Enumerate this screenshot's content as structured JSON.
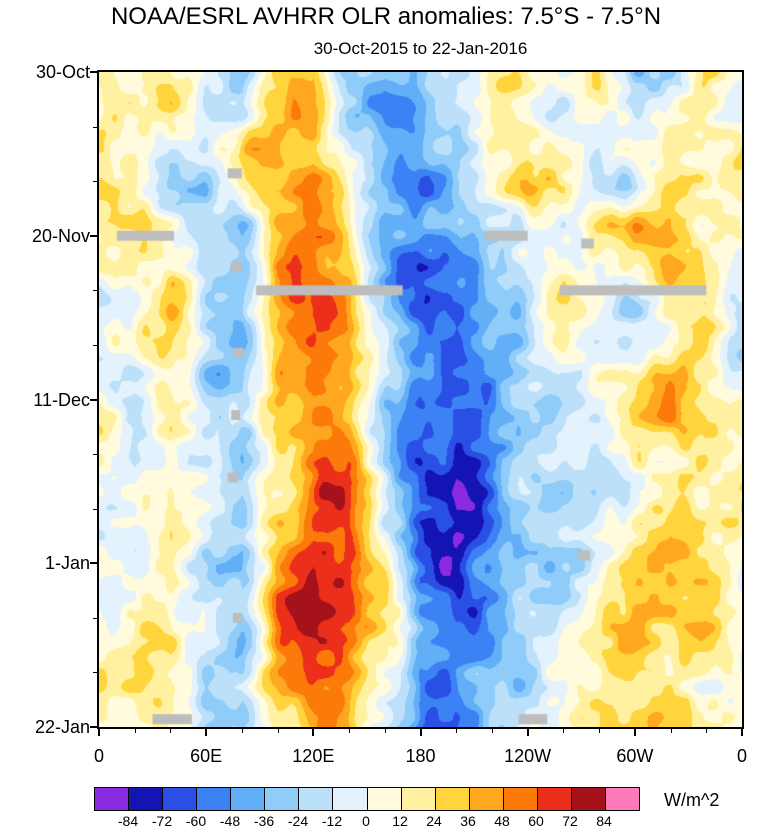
{
  "chart_data": {
    "type": "heatmap",
    "title": "NOAA/ESRL AVHRR OLR anomalies: 7.5°S - 7.5°N",
    "subtitle": "30-Oct-2015 to 22-Jan-2016",
    "units_label": "W/m^2",
    "xlabel": "",
    "ylabel": "",
    "x_axis": {
      "range_deg": [
        0,
        360
      ],
      "minor_step_deg": 20,
      "major_ticks": [
        {
          "lon": 0,
          "label": "0"
        },
        {
          "lon": 60,
          "label": "60E"
        },
        {
          "lon": 120,
          "label": "120E"
        },
        {
          "lon": 180,
          "label": "180"
        },
        {
          "lon": 240,
          "label": "120W"
        },
        {
          "lon": 300,
          "label": "60W"
        },
        {
          "lon": 360,
          "label": "0"
        }
      ]
    },
    "y_axis": {
      "range_days": [
        0,
        84
      ],
      "minor_step_days": 7,
      "orientation": "time increases downward",
      "major_ticks": [
        {
          "day": 0,
          "label": "30-Oct"
        },
        {
          "day": 21,
          "label": "20-Nov"
        },
        {
          "day": 42,
          "label": "11-Dec"
        },
        {
          "day": 63,
          "label": "1-Jan"
        },
        {
          "day": 84,
          "label": "22-Jan"
        }
      ]
    },
    "levels": [
      -84,
      -72,
      -60,
      -48,
      -36,
      -24,
      -12,
      0,
      12,
      24,
      36,
      48,
      60,
      72,
      84
    ],
    "colors": [
      "#8a2be2",
      "#1414b4",
      "#2a4fe4",
      "#3c82f5",
      "#62aef7",
      "#8fccf9",
      "#bce0fa",
      "#e3f2fc",
      "#fffbdc",
      "#fff1a0",
      "#ffd43c",
      "#ffa81f",
      "#fb7a0a",
      "#ec2f1a",
      "#a5121c",
      "#ff7ab8"
    ],
    "missing_color": "#bdbdbd",
    "grid": {
      "note": "OLR anomaly (W/m^2) estimated from the filled contours; rows evenly span 30-Oct-2015 (top) to 22-Jan-2016 (bottom), columns every 20 deg longitude 0-360",
      "lon_deg": [
        0,
        20,
        40,
        60,
        80,
        100,
        120,
        140,
        160,
        180,
        200,
        220,
        240,
        260,
        280,
        300,
        320,
        340,
        360
      ],
      "values": [
        [
          5,
          10,
          20,
          -15,
          -30,
          35,
          45,
          -30,
          -50,
          -40,
          -25,
          20,
          0,
          -10,
          10,
          -35,
          -20,
          30,
          5
        ],
        [
          0,
          15,
          25,
          -20,
          -25,
          40,
          50,
          -20,
          -55,
          -45,
          -20,
          25,
          15,
          -5,
          5,
          -25,
          10,
          25,
          0
        ],
        [
          10,
          20,
          -10,
          -15,
          20,
          45,
          40,
          -15,
          -45,
          -50,
          -30,
          10,
          25,
          10,
          -10,
          5,
          20,
          15,
          10
        ],
        [
          15,
          25,
          -20,
          -25,
          15,
          40,
          50,
          10,
          -35,
          -55,
          -35,
          -10,
          30,
          15,
          -15,
          -10,
          25,
          30,
          15
        ],
        [
          5,
          10,
          15,
          -20,
          -35,
          30,
          45,
          20,
          -40,
          -50,
          -45,
          -15,
          10,
          -20,
          20,
          50,
          25,
          -10,
          5
        ],
        [
          0,
          15,
          20,
          -10,
          -25,
          35,
          55,
          30,
          -30,
          -60,
          -55,
          -25,
          5,
          15,
          -10,
          20,
          30,
          10,
          0
        ],
        [
          -10,
          10,
          25,
          -15,
          -30,
          30,
          55,
          40,
          -25,
          -65,
          -60,
          -35,
          -5,
          20,
          0,
          -15,
          20,
          25,
          -10
        ],
        [
          -15,
          5,
          20,
          -20,
          -35,
          25,
          50,
          45,
          -15,
          -60,
          -70,
          -40,
          -15,
          10,
          -10,
          -25,
          10,
          30,
          -15
        ],
        [
          5,
          -15,
          10,
          -25,
          -30,
          30,
          45,
          40,
          -20,
          -55,
          -65,
          -45,
          -20,
          -25,
          15,
          25,
          45,
          20,
          5
        ],
        [
          10,
          -20,
          15,
          -20,
          -25,
          35,
          50,
          35,
          -25,
          -50,
          -60,
          -40,
          -30,
          -15,
          -20,
          15,
          35,
          25,
          10
        ],
        [
          15,
          -10,
          20,
          -15,
          -30,
          30,
          55,
          50,
          -20,
          -60,
          -75,
          -50,
          -25,
          -10,
          -15,
          10,
          25,
          30,
          15
        ],
        [
          10,
          5,
          25,
          -10,
          -35,
          25,
          60,
          60,
          -15,
          -65,
          -80,
          -55,
          -30,
          -20,
          -10,
          5,
          20,
          25,
          10
        ],
        [
          5,
          -10,
          15,
          -20,
          -30,
          35,
          65,
          70,
          -10,
          -70,
          -80,
          -50,
          -35,
          -15,
          -5,
          15,
          30,
          20,
          5
        ],
        [
          0,
          -15,
          20,
          -25,
          -25,
          40,
          75,
          78,
          20,
          -60,
          -75,
          -55,
          -30,
          -20,
          5,
          20,
          35,
          25,
          0
        ],
        [
          5,
          -10,
          25,
          -20,
          -30,
          45,
          82,
          75,
          30,
          -55,
          -70,
          -45,
          -25,
          -10,
          10,
          25,
          40,
          30,
          5
        ],
        [
          10,
          15,
          30,
          -15,
          -25,
          40,
          65,
          55,
          10,
          -50,
          -60,
          -40,
          -20,
          -5,
          15,
          30,
          35,
          20,
          10
        ],
        [
          5,
          20,
          25,
          -10,
          -20,
          35,
          50,
          40,
          -10,
          -55,
          -50,
          -30,
          -15,
          0,
          10,
          20,
          25,
          15,
          5
        ],
        [
          0,
          10,
          15,
          -15,
          -25,
          30,
          45,
          30,
          -20,
          -60,
          -55,
          -25,
          -10,
          5,
          15,
          25,
          20,
          10,
          0
        ]
      ]
    },
    "missing_segments": [
      {
        "day": 13,
        "lon0": 72,
        "lon1": 80
      },
      {
        "day": 21,
        "lon0": 10,
        "lon1": 42
      },
      {
        "day": 21,
        "lon0": 216,
        "lon1": 240
      },
      {
        "day": 22,
        "lon0": 270,
        "lon1": 277
      },
      {
        "day": 25,
        "lon0": 74,
        "lon1": 80
      },
      {
        "day": 28,
        "lon0": 88,
        "lon1": 170
      },
      {
        "day": 28,
        "lon0": 258,
        "lon1": 340
      },
      {
        "day": 36,
        "lon0": 75,
        "lon1": 81
      },
      {
        "day": 44,
        "lon0": 74,
        "lon1": 79
      },
      {
        "day": 52,
        "lon0": 72,
        "lon1": 78
      },
      {
        "day": 62,
        "lon0": 268,
        "lon1": 275
      },
      {
        "day": 70,
        "lon0": 75,
        "lon1": 80
      },
      {
        "day": 83,
        "lon0": 30,
        "lon1": 52
      },
      {
        "day": 83,
        "lon0": 235,
        "lon1": 251
      }
    ]
  }
}
